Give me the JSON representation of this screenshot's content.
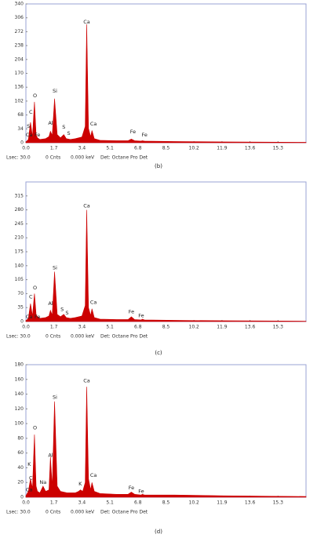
{
  "chart_data": [
    {
      "type": "line",
      "caption": "(b)",
      "color": "#cc0000",
      "frame_color": "#9aa3d6",
      "x": [
        0.0,
        0.15,
        0.28,
        0.4,
        0.52,
        0.62,
        0.7,
        0.85,
        1.2,
        1.4,
        1.49,
        1.6,
        1.74,
        1.9,
        2.1,
        2.3,
        2.45,
        2.7,
        3.0,
        3.4,
        3.6,
        3.69,
        3.8,
        3.93,
        4.01,
        4.15,
        4.5,
        5.5,
        6.2,
        6.4,
        6.6,
        7.0,
        7.06,
        7.2,
        9,
        12,
        17
      ],
      "values": [
        2,
        8,
        50,
        15,
        100,
        20,
        12,
        8,
        10,
        15,
        28,
        18,
        108,
        20,
        12,
        20,
        10,
        8,
        10,
        14,
        40,
        290,
        35,
        15,
        30,
        10,
        6,
        5,
        5,
        9,
        5,
        4,
        5,
        4,
        3,
        2,
        1
      ],
      "xlim": [
        0,
        17
      ],
      "xticks": [
        {
          "value": 0,
          "label": "0.0"
        },
        1.7,
        3.4,
        5.1,
        6.8,
        8.5,
        10.2,
        11.9,
        13.6,
        15.3
      ],
      "ylim": [
        0,
        340
      ],
      "yticks": [
        0,
        34,
        68,
        102,
        136,
        170,
        204,
        238,
        272,
        306,
        340
      ],
      "annotations": [
        {
          "text": "C",
          "x": 0.3,
          "y": 75
        },
        {
          "text": "O",
          "x": 0.55,
          "y": 115
        },
        {
          "text": "S",
          "x": 0.15,
          "y": 40
        },
        {
          "text": "Ca",
          "x": 0.2,
          "y": 19
        },
        {
          "text": "Fe",
          "x": 0.7,
          "y": 19
        },
        {
          "text": "Al",
          "x": 1.5,
          "y": 48
        },
        {
          "text": "Si",
          "x": 1.76,
          "y": 127
        },
        {
          "text": "S",
          "x": 2.3,
          "y": 38
        },
        {
          "text": "S",
          "x": 2.6,
          "y": 23
        },
        {
          "text": "Ca",
          "x": 3.69,
          "y": 296
        },
        {
          "text": "Ca",
          "x": 4.1,
          "y": 46
        },
        {
          "text": "Fe",
          "x": 6.5,
          "y": 27
        },
        {
          "text": "Fe",
          "x": 7.2,
          "y": 19
        }
      ],
      "footer": [
        "Lsec: 30.0",
        "0 Cnts",
        "0.000 keV",
        "Det: Octane Pro Det"
      ]
    },
    {
      "type": "line",
      "caption": "(c)",
      "color": "#cc0000",
      "frame_color": "#9aa3d6",
      "x": [
        0.0,
        0.15,
        0.28,
        0.4,
        0.52,
        0.62,
        0.7,
        0.85,
        1.2,
        1.4,
        1.49,
        1.6,
        1.74,
        1.9,
        2.1,
        2.3,
        2.45,
        2.7,
        3.0,
        3.4,
        3.6,
        3.69,
        3.8,
        3.93,
        4.01,
        4.15,
        4.5,
        5.5,
        6.2,
        6.4,
        6.6,
        7.0,
        7.06,
        7.2,
        9,
        12,
        17
      ],
      "values": [
        2,
        8,
        45,
        14,
        70,
        18,
        12,
        8,
        10,
        14,
        28,
        16,
        125,
        18,
        12,
        18,
        10,
        8,
        10,
        14,
        40,
        280,
        35,
        15,
        32,
        10,
        6,
        5,
        5,
        12,
        5,
        4,
        6,
        4,
        3,
        2,
        1
      ],
      "xlim": [
        0,
        17
      ],
      "xticks": [
        {
          "value": 0,
          "label": "0.0"
        },
        1.7,
        3.4,
        5.1,
        6.8,
        8.5,
        10.2,
        11.9,
        13.6,
        15.3
      ],
      "ylim": [
        0,
        350
      ],
      "yticks": [
        0,
        35,
        70,
        105,
        140,
        175,
        210,
        245,
        280,
        315
      ],
      "annotations": [
        {
          "text": "C",
          "x": 0.3,
          "y": 62
        },
        {
          "text": "O",
          "x": 0.55,
          "y": 85
        },
        {
          "text": "Ca",
          "x": 0.2,
          "y": 12
        },
        {
          "text": "Fe",
          "x": 0.7,
          "y": 12
        },
        {
          "text": "Al",
          "x": 1.5,
          "y": 45
        },
        {
          "text": "Si",
          "x": 1.76,
          "y": 135
        },
        {
          "text": "S",
          "x": 2.2,
          "y": 30
        },
        {
          "text": "S",
          "x": 2.5,
          "y": 22
        },
        {
          "text": "Ca",
          "x": 3.69,
          "y": 290
        },
        {
          "text": "Ca",
          "x": 4.1,
          "y": 48
        },
        {
          "text": "Fe",
          "x": 6.4,
          "y": 25
        },
        {
          "text": "Fe",
          "x": 7.0,
          "y": 15
        }
      ],
      "footer": [
        "Lsec: 30.0",
        "0 Cnts",
        "0.000 keV",
        "Det: Octane Pro Det"
      ]
    },
    {
      "type": "line",
      "caption": "(d)",
      "color": "#cc0000",
      "frame_color": "#9aa3d6",
      "x": [
        0.0,
        0.15,
        0.28,
        0.4,
        0.52,
        0.62,
        0.7,
        0.85,
        1.04,
        1.2,
        1.4,
        1.49,
        1.6,
        1.74,
        1.9,
        2.1,
        2.5,
        3.0,
        3.2,
        3.31,
        3.45,
        3.6,
        3.69,
        3.8,
        3.93,
        4.01,
        4.15,
        4.5,
        5.5,
        6.2,
        6.4,
        6.6,
        7.0,
        7.06,
        7.2,
        9,
        12,
        17
      ],
      "values": [
        2,
        8,
        25,
        12,
        85,
        15,
        8,
        6,
        15,
        8,
        10,
        55,
        14,
        130,
        15,
        8,
        6,
        6,
        8,
        10,
        8,
        20,
        150,
        25,
        10,
        20,
        8,
        5,
        4,
        4,
        7,
        4,
        3,
        4,
        3,
        3,
        2,
        1
      ],
      "xlim": [
        0,
        17
      ],
      "xticks": [
        {
          "value": 0,
          "label": "0.0"
        },
        1.7,
        3.4,
        5.1,
        6.8,
        8.5,
        10.2,
        11.9,
        13.6,
        15.3
      ],
      "ylim": [
        0,
        180
      ],
      "yticks": [
        0,
        20,
        40,
        60,
        80,
        100,
        120,
        140,
        160,
        180
      ],
      "annotations": [
        {
          "text": "K",
          "x": 0.2,
          "y": 45
        },
        {
          "text": "C",
          "x": 0.3,
          "y": 26
        },
        {
          "text": "Ca",
          "x": 0.2,
          "y": 10
        },
        {
          "text": "O",
          "x": 0.55,
          "y": 94
        },
        {
          "text": "Na",
          "x": 1.04,
          "y": 20
        },
        {
          "text": "Al",
          "x": 1.5,
          "y": 57
        },
        {
          "text": "Si",
          "x": 1.76,
          "y": 136
        },
        {
          "text": "K",
          "x": 3.3,
          "y": 18
        },
        {
          "text": "Ca",
          "x": 3.69,
          "y": 158
        },
        {
          "text": "Ca",
          "x": 4.1,
          "y": 30
        },
        {
          "text": "Fe",
          "x": 6.4,
          "y": 13
        },
        {
          "text": "Fe",
          "x": 7.0,
          "y": 8
        }
      ],
      "footer": [
        "Lsec: 30.0",
        "0 Cnts",
        "0.000 keV",
        "Det: Octane Pro Det"
      ]
    }
  ]
}
